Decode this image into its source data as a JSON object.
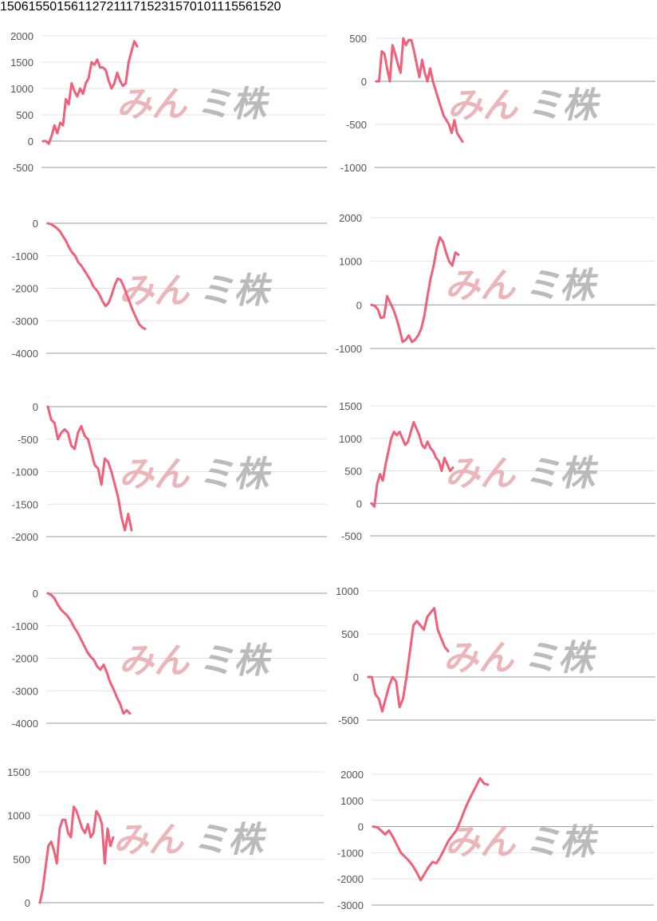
{
  "colors": {
    "line": "#f0607a",
    "grid": "#e4e4e4",
    "axis": "#9a9a9a",
    "title": "#1a5fb4"
  },
  "watermark": {
    "text_main": "みん",
    "text_sub": "ミ株"
  },
  "chart_data": [
    {
      "type": "line",
      "title": "1506",
      "ylim": [
        -500,
        2000
      ],
      "yticks": [
        2000,
        1500,
        1000,
        500,
        0,
        -500
      ],
      "values": [
        0,
        0,
        -50,
        100,
        300,
        150,
        350,
        300,
        800,
        700,
        1100,
        950,
        850,
        1000,
        900,
        1100,
        1200,
        1500,
        1450,
        1550,
        1400,
        1400,
        1350,
        1150,
        1000,
        1100,
        1300,
        1150,
        1050,
        1100,
        1500,
        1700,
        1900,
        1800
      ]
    },
    {
      "type": "line",
      "title": "1550",
      "ylim": [
        -1000,
        500
      ],
      "yticks": [
        500,
        0,
        -500,
        -1000
      ],
      "values": [
        0,
        0,
        350,
        320,
        150,
        0,
        420,
        320,
        200,
        100,
        500,
        420,
        480,
        480,
        350,
        200,
        50,
        250,
        100,
        0,
        150,
        0,
        -100,
        -200,
        -300,
        -400,
        -450,
        -500,
        -600,
        -450,
        -600,
        -650,
        -700
      ]
    },
    {
      "type": "line",
      "title": "1561",
      "ylim": [
        -4000,
        0
      ],
      "yticks": [
        0,
        -1000,
        -2000,
        -3000,
        -4000
      ],
      "values": [
        0,
        -30,
        -80,
        -150,
        -250,
        -400,
        -550,
        -750,
        -900,
        -1000,
        -1200,
        -1300,
        -1450,
        -1600,
        -1750,
        -1950,
        -2050,
        -2200,
        -2400,
        -2550,
        -2450,
        -2200,
        -1900,
        -1700,
        -1750,
        -1950,
        -2200,
        -2450,
        -2700,
        -2900,
        -3100,
        -3200,
        -3250
      ]
    },
    {
      "type": "line",
      "title": "1272",
      "ylim": [
        -1000,
        2000
      ],
      "yticks": [
        2000,
        1000,
        0,
        -1000
      ],
      "values": [
        0,
        -20,
        -100,
        -300,
        -280,
        200,
        50,
        -100,
        -300,
        -550,
        -850,
        -800,
        -700,
        -850,
        -800,
        -700,
        -550,
        -250,
        200,
        600,
        900,
        1300,
        1550,
        1450,
        1200,
        1000,
        900,
        1200,
        1150
      ]
    },
    {
      "type": "line",
      "title": "1117",
      "ylim": [
        -2000,
        0
      ],
      "yticks": [
        0,
        -500,
        -1000,
        -1500,
        -2000
      ],
      "values": [
        0,
        -200,
        -250,
        -500,
        -400,
        -350,
        -400,
        -600,
        -650,
        -400,
        -300,
        -450,
        -500,
        -700,
        -900,
        -950,
        -1200,
        -800,
        -850,
        -1000,
        -1200,
        -1400,
        -1700,
        -1900,
        -1650,
        -1900
      ]
    },
    {
      "type": "line",
      "title": "1523",
      "ylim": [
        -500,
        1500
      ],
      "yticks": [
        1500,
        1000,
        500,
        0,
        -500
      ],
      "values": [
        0,
        -50,
        300,
        450,
        350,
        600,
        800,
        1000,
        1100,
        1050,
        1100,
        1000,
        900,
        950,
        1100,
        1250,
        1150,
        1050,
        900,
        850,
        950,
        850,
        800,
        700,
        650,
        500,
        700,
        600,
        500,
        550
      ]
    },
    {
      "type": "line",
      "title": "1570",
      "ylim": [
        -4000,
        0
      ],
      "yticks": [
        0,
        -1000,
        -2000,
        -3000,
        -4000
      ],
      "values": [
        0,
        -50,
        -150,
        -350,
        -500,
        -600,
        -700,
        -850,
        -1050,
        -1200,
        -1400,
        -1600,
        -1800,
        -1950,
        -2050,
        -2250,
        -2350,
        -2200,
        -2450,
        -2750,
        -2950,
        -3200,
        -3400,
        -3700,
        -3600,
        -3700
      ]
    },
    {
      "type": "line",
      "title": "1011",
      "ylim": [
        -500,
        1000
      ],
      "yticks": [
        1000,
        500,
        0,
        -500
      ],
      "values": [
        0,
        0,
        -200,
        -250,
        -400,
        -250,
        -100,
        0,
        -50,
        -350,
        -250,
        0,
        300,
        600,
        650,
        600,
        550,
        700,
        750,
        800,
        550,
        450,
        350,
        300
      ]
    },
    {
      "type": "line",
      "title": "1556",
      "ylim": [
        0,
        1500
      ],
      "yticks": [
        1500,
        1000,
        500,
        0
      ],
      "values": [
        0,
        150,
        400,
        650,
        700,
        600,
        450,
        850,
        950,
        950,
        800,
        750,
        1100,
        1050,
        950,
        850,
        800,
        900,
        750,
        800,
        1050,
        1000,
        900,
        450,
        850,
        650,
        750
      ]
    },
    {
      "type": "line",
      "title": "1520",
      "ylim": [
        -3000,
        2000
      ],
      "yticks": [
        2000,
        1000,
        0,
        -1000,
        -2000,
        -3000
      ],
      "values": [
        0,
        -20,
        -150,
        -300,
        -150,
        -400,
        -700,
        -1000,
        -1150,
        -1300,
        -1500,
        -1750,
        -2050,
        -1800,
        -1550,
        -1350,
        -1400,
        -1150,
        -850,
        -550,
        -350,
        -150,
        200,
        600,
        950,
        1250,
        1550,
        1850,
        1650,
        1600
      ]
    }
  ]
}
